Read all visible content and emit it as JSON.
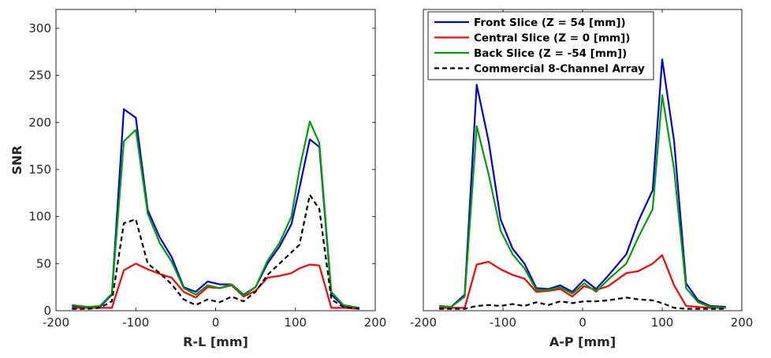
{
  "chart_data": [
    {
      "type": "line",
      "title": "",
      "xlabel": "R-L [mm]",
      "ylabel": "SNR",
      "xlim": [
        -200,
        200
      ],
      "ylim": [
        0,
        320
      ],
      "xticks": [
        -200,
        -100,
        0,
        100,
        200
      ],
      "yticks": [
        0,
        50,
        100,
        150,
        200,
        250,
        300
      ],
      "grid": false,
      "legend": null,
      "series": [
        {
          "name": "Front Slice (Z = 54 [mm])",
          "color": "#0000e0",
          "dash": "solid",
          "x": [
            -180,
            -160,
            -145,
            -130,
            -115,
            -100,
            -85,
            -70,
            -55,
            -40,
            -25,
            -10,
            5,
            20,
            35,
            50,
            65,
            80,
            95,
            105,
            118,
            130,
            145,
            160,
            180
          ],
          "y": [
            5,
            4,
            4,
            17,
            214,
            205,
            107,
            78,
            57,
            25,
            20,
            31,
            28,
            28,
            17,
            25,
            50,
            68,
            92,
            130,
            182,
            174,
            17,
            5,
            3
          ]
        },
        {
          "name": "Central Slice (Z = 0 [mm])",
          "color": "#ff0000",
          "dash": "solid",
          "x": [
            -180,
            -160,
            -145,
            -130,
            -115,
            -100,
            -85,
            -70,
            -55,
            -40,
            -25,
            -10,
            5,
            20,
            35,
            50,
            65,
            80,
            95,
            105,
            118,
            130,
            145,
            160,
            180
          ],
          "y": [
            3,
            3,
            3,
            3,
            43,
            50,
            44,
            39,
            35,
            20,
            14,
            25,
            24,
            27,
            15,
            21,
            35,
            37,
            40,
            45,
            49,
            48,
            3,
            3,
            2
          ]
        },
        {
          "name": "Back Slice (Z = -54 [mm])",
          "color": "#00a000",
          "dash": "solid",
          "x": [
            -180,
            -160,
            -145,
            -130,
            -115,
            -100,
            -85,
            -70,
            -55,
            -40,
            -25,
            -10,
            5,
            20,
            35,
            50,
            65,
            80,
            95,
            105,
            118,
            130,
            145,
            160,
            180
          ],
          "y": [
            6,
            4,
            5,
            18,
            180,
            192,
            103,
            72,
            52,
            24,
            17,
            27,
            24,
            28,
            16,
            25,
            53,
            72,
            100,
            150,
            201,
            178,
            20,
            6,
            3
          ]
        },
        {
          "name": "Commercial 8-Channel Array",
          "color": "#000000",
          "dash": "dashed",
          "x": [
            -180,
            -160,
            -145,
            -130,
            -115,
            -100,
            -85,
            -70,
            -55,
            -40,
            -25,
            -10,
            5,
            20,
            35,
            50,
            65,
            80,
            95,
            105,
            118,
            130,
            145,
            160,
            180
          ],
          "y": [
            2,
            2,
            3,
            10,
            93,
            97,
            50,
            40,
            28,
            12,
            6,
            12,
            9,
            15,
            10,
            20,
            38,
            50,
            62,
            70,
            123,
            108,
            12,
            4,
            2
          ]
        }
      ]
    },
    {
      "type": "line",
      "title": "",
      "xlabel": "A-P [mm]",
      "ylabel": "",
      "xlim": [
        -200,
        200
      ],
      "ylim": [
        0,
        320
      ],
      "xticks": [
        -200,
        -100,
        0,
        100,
        200
      ],
      "yticks": [],
      "grid": false,
      "legend": "top-left",
      "series": [
        {
          "name": "Front Slice (Z = 54 [mm])",
          "color": "#0000e0",
          "dash": "solid",
          "x": [
            -180,
            -165,
            -148,
            -133,
            -118,
            -103,
            -88,
            -73,
            -58,
            -43,
            -28,
            -13,
            2,
            17,
            32,
            55,
            70,
            88,
            100,
            115,
            130,
            145,
            160,
            180
          ],
          "y": [
            5,
            4,
            17,
            240,
            180,
            97,
            66,
            50,
            24,
            23,
            27,
            20,
            33,
            23,
            37,
            60,
            95,
            128,
            267,
            180,
            29,
            11,
            5,
            4
          ]
        },
        {
          "name": "Central Slice (Z = 0 [mm])",
          "color": "#ff0000",
          "dash": "solid",
          "x": [
            -180,
            -165,
            -148,
            -133,
            -118,
            -103,
            -88,
            -73,
            -58,
            -43,
            -28,
            -13,
            2,
            17,
            32,
            55,
            70,
            88,
            100,
            115,
            130,
            145,
            160,
            180
          ],
          "y": [
            3,
            3,
            3,
            49,
            52,
            44,
            38,
            34,
            20,
            21,
            23,
            15,
            26,
            22,
            26,
            40,
            42,
            50,
            59,
            27,
            5,
            4,
            3,
            3
          ]
        },
        {
          "name": "Back Slice (Z = -54 [mm])",
          "color": "#00a000",
          "dash": "solid",
          "x": [
            -180,
            -165,
            -148,
            -133,
            -118,
            -103,
            -88,
            -73,
            -58,
            -43,
            -28,
            -13,
            2,
            17,
            32,
            55,
            70,
            88,
            100,
            115,
            130,
            145,
            160,
            180
          ],
          "y": [
            5,
            4,
            15,
            196,
            145,
            85,
            60,
            45,
            22,
            22,
            25,
            18,
            29,
            20,
            33,
            50,
            78,
            108,
            229,
            150,
            24,
            9,
            4,
            3
          ]
        },
        {
          "name": "Commercial 8-Channel Array",
          "color": "#000000",
          "dash": "dashed",
          "x": [
            -180,
            -165,
            -148,
            -133,
            -118,
            -103,
            -88,
            -73,
            -58,
            -43,
            -28,
            -13,
            2,
            17,
            32,
            55,
            70,
            88,
            100,
            115,
            130,
            145,
            160,
            180
          ],
          "y": [
            2,
            2,
            2,
            5,
            6,
            5,
            7,
            5,
            9,
            6,
            10,
            8,
            10,
            10,
            11,
            14,
            12,
            11,
            8,
            3,
            2,
            2,
            2,
            2
          ]
        }
      ]
    }
  ]
}
